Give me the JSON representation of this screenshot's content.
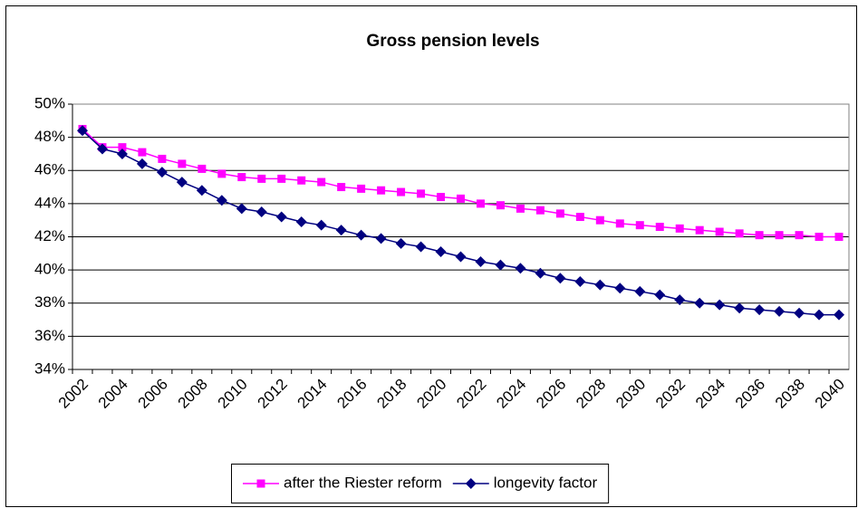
{
  "chart_data": {
    "type": "line",
    "title": "Gross pension levels",
    "categories": [
      "2002",
      null,
      "2004",
      null,
      "2006",
      null,
      "2008",
      null,
      "2010",
      null,
      "2012",
      null,
      "2014",
      null,
      "2016",
      null,
      "2018",
      null,
      "2020",
      null,
      "2022",
      null,
      "2024",
      null,
      "2026",
      null,
      "2028",
      null,
      "2030",
      null,
      "2032",
      null,
      "2034",
      null,
      "2036",
      null,
      "2038",
      null,
      "2040"
    ],
    "series": [
      {
        "name": "after the Riester reform",
        "color": "#ff00ff",
        "marker": "square",
        "values": [
          48.5,
          47.4,
          47.4,
          47.1,
          46.7,
          46.4,
          46.1,
          45.8,
          45.6,
          45.5,
          45.5,
          45.4,
          45.3,
          45.0,
          44.9,
          44.8,
          44.7,
          44.6,
          44.4,
          44.3,
          44.0,
          43.9,
          43.7,
          43.6,
          43.4,
          43.2,
          43.0,
          42.8,
          42.7,
          42.6,
          42.5,
          42.4,
          42.3,
          42.2,
          42.1,
          42.1,
          42.1,
          42.0,
          42.0
        ]
      },
      {
        "name": "longevity factor",
        "color": "#000080",
        "marker": "diamond",
        "values": [
          48.4,
          47.3,
          47.0,
          46.4,
          45.9,
          45.3,
          44.8,
          44.2,
          43.7,
          43.5,
          43.2,
          42.9,
          42.7,
          42.4,
          42.1,
          41.9,
          41.6,
          41.4,
          41.1,
          40.8,
          40.5,
          40.3,
          40.1,
          39.8,
          39.5,
          39.3,
          39.1,
          38.9,
          38.7,
          38.5,
          38.2,
          38.0,
          37.9,
          37.7,
          37.6,
          37.5,
          37.4,
          37.3,
          37.3
        ]
      }
    ],
    "ylim": [
      34,
      50
    ],
    "yticks": [
      {
        "value": 34,
        "label": "34%"
      },
      {
        "value": 36,
        "label": "36%"
      },
      {
        "value": 38,
        "label": "38%"
      },
      {
        "value": 40,
        "label": "40%"
      },
      {
        "value": 42,
        "label": "42%"
      },
      {
        "value": 44,
        "label": "44%"
      },
      {
        "value": 46,
        "label": "46%"
      },
      {
        "value": 48,
        "label": "48%"
      },
      {
        "value": 50,
        "label": "50%"
      }
    ],
    "grid": true,
    "legend": "bottom"
  }
}
